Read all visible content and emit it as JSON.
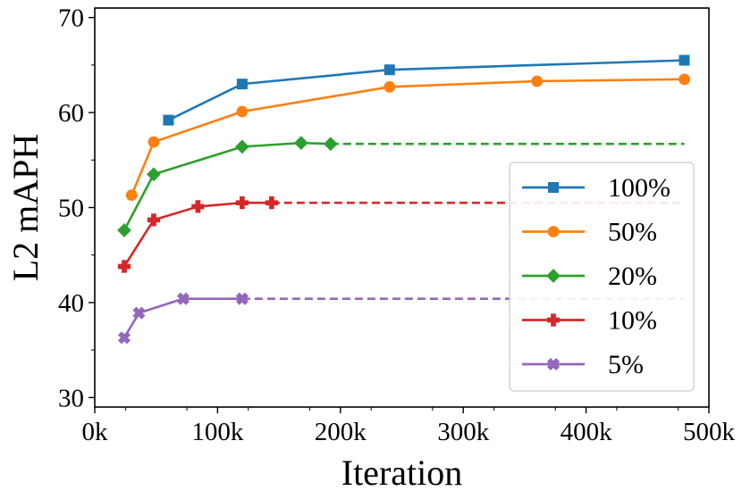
{
  "chart_data": {
    "type": "line",
    "title": "",
    "xlabel": "Iteration",
    "ylabel": "L2 mAPH",
    "xlim": [
      0,
      500000
    ],
    "ylim": [
      29,
      71
    ],
    "x_ticks": [
      0,
      100000,
      200000,
      300000,
      400000,
      500000
    ],
    "x_tick_labels": [
      "0k",
      "100k",
      "200k",
      "300k",
      "400k",
      "500k"
    ],
    "y_ticks": [
      30,
      40,
      50,
      60,
      70
    ],
    "y_tick_labels": [
      "30",
      "40",
      "50",
      "60",
      "70"
    ],
    "grid": false,
    "legend_position": "right",
    "series": [
      {
        "name": "100%",
        "color": "#1f77b4",
        "marker": "square",
        "x": [
          60000,
          120000,
          240000,
          480000
        ],
        "y": [
          59.2,
          63.0,
          64.5,
          65.5
        ],
        "dashed_extension_to": null
      },
      {
        "name": "50%",
        "color": "#ff7f0e",
        "marker": "circle",
        "x": [
          30000,
          48000,
          120000,
          240000,
          360000,
          480000
        ],
        "y": [
          51.3,
          56.9,
          60.1,
          62.7,
          63.3,
          63.5
        ],
        "dashed_extension_to": null
      },
      {
        "name": "20%",
        "color": "#2ca02c",
        "marker": "diamond",
        "x": [
          24000,
          48000,
          120000,
          168000,
          192000
        ],
        "y": [
          47.6,
          53.5,
          56.4,
          56.8,
          56.7
        ],
        "dashed_extension_to": 480000
      },
      {
        "name": "10%",
        "color": "#d62728",
        "marker": "plus",
        "x": [
          24000,
          48000,
          84000,
          120000,
          144000
        ],
        "y": [
          43.8,
          48.7,
          50.1,
          50.5,
          50.5
        ],
        "dashed_extension_to": 480000
      },
      {
        "name": "5%",
        "color": "#9467bd",
        "marker": "x",
        "x": [
          24000,
          36000,
          72000,
          120000
        ],
        "y": [
          36.3,
          38.9,
          40.4,
          40.4
        ],
        "dashed_extension_to": 480000
      }
    ]
  }
}
